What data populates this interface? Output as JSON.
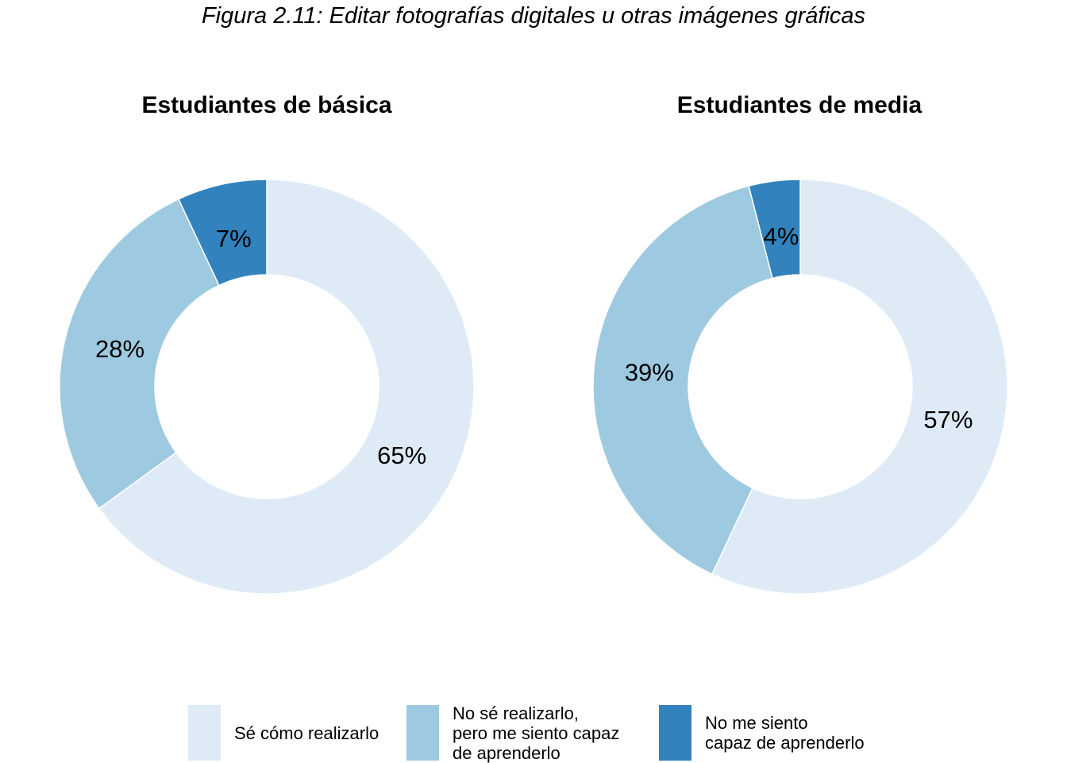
{
  "figure_title": "Figura 2.11: Editar fotografías digitales u otras imágenes gráficas",
  "legend": [
    {
      "lines": [
        "Sé cómo realizarlo"
      ],
      "color": "#deebf7"
    },
    {
      "lines": [
        "No sé realizarlo,",
        "pero me siento capaz",
        "de aprenderlo"
      ],
      "color": "#9ecae1"
    },
    {
      "lines": [
        "No me siento",
        "capaz de aprenderlo"
      ],
      "color": "#3182bd"
    }
  ],
  "chart_data": [
    {
      "type": "pie",
      "title": "Estudiantes de básica",
      "categories": [
        "Sé cómo realizarlo",
        "No sé realizarlo, pero me siento capaz de aprenderlo",
        "No me siento capaz de aprenderlo"
      ],
      "values": [
        65,
        28,
        7
      ],
      "labels": [
        "65%",
        "28%",
        "7%"
      ],
      "colors": [
        "#deebf7",
        "#9ecae1",
        "#3182bd"
      ]
    },
    {
      "type": "pie",
      "title": "Estudiantes de media",
      "categories": [
        "Sé cómo realizarlo",
        "No sé realizarlo, pero me siento capaz de aprenderlo",
        "No me siento capaz de aprenderlo"
      ],
      "values": [
        57,
        39,
        4
      ],
      "labels": [
        "57%",
        "39%",
        "4%"
      ],
      "colors": [
        "#deebf7",
        "#9ecae1",
        "#3182bd"
      ]
    }
  ]
}
